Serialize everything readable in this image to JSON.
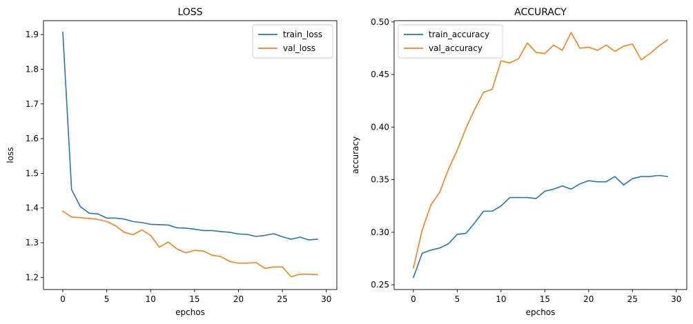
{
  "colors": {
    "series_0": "#1f77b4",
    "series_1": "#ff7f0e",
    "axis": "#000000",
    "legend_border": "#cccccc",
    "background": "#ffffff"
  },
  "chart_data": [
    {
      "type": "line",
      "title": "LOSS",
      "xlabel": "epchos",
      "ylabel": "loss",
      "xlim": [
        -2.2,
        31.2
      ],
      "ylim": [
        1.165,
        1.94
      ],
      "x_ticks": [
        0,
        5,
        10,
        15,
        20,
        25,
        30
      ],
      "y_ticks": [
        1.2,
        1.3,
        1.4,
        1.5,
        1.6,
        1.7,
        1.8,
        1.9
      ],
      "grid": false,
      "legend_position": "upper right",
      "x": [
        0,
        1,
        2,
        3,
        4,
        5,
        6,
        7,
        8,
        9,
        10,
        11,
        12,
        13,
        14,
        15,
        16,
        17,
        18,
        19,
        20,
        21,
        22,
        23,
        24,
        25,
        26,
        27,
        28,
        29
      ],
      "series": [
        {
          "name": "train_loss",
          "values": [
            1.907,
            1.453,
            1.404,
            1.385,
            1.383,
            1.371,
            1.371,
            1.368,
            1.361,
            1.358,
            1.353,
            1.352,
            1.351,
            1.343,
            1.342,
            1.339,
            1.335,
            1.335,
            1.332,
            1.33,
            1.325,
            1.324,
            1.318,
            1.321,
            1.326,
            1.317,
            1.31,
            1.316,
            1.308,
            1.31
          ]
        },
        {
          "name": "val_loss",
          "values": [
            1.391,
            1.374,
            1.372,
            1.37,
            1.367,
            1.361,
            1.349,
            1.33,
            1.323,
            1.337,
            1.321,
            1.287,
            1.302,
            1.282,
            1.271,
            1.278,
            1.276,
            1.264,
            1.26,
            1.246,
            1.241,
            1.241,
            1.243,
            1.226,
            1.23,
            1.23,
            1.202,
            1.209,
            1.209,
            1.208
          ]
        }
      ]
    },
    {
      "type": "line",
      "title": "ACCURACY",
      "xlabel": "epchos",
      "ylabel": "accuracy",
      "xlim": [
        -2.2,
        31.2
      ],
      "ylim": [
        0.2455,
        0.5012
      ],
      "x_ticks": [
        0,
        5,
        10,
        15,
        20,
        25,
        30
      ],
      "y_ticks": [
        0.25,
        0.3,
        0.35,
        0.4,
        0.45,
        0.5
      ],
      "y_tick_labels": [
        "0.25",
        "0.30",
        "0.35",
        "0.40",
        "0.45",
        "0.50"
      ],
      "grid": false,
      "legend_position": "upper left",
      "x": [
        0,
        1,
        2,
        3,
        4,
        5,
        6,
        7,
        8,
        9,
        10,
        11,
        12,
        13,
        14,
        15,
        16,
        17,
        18,
        19,
        20,
        21,
        22,
        23,
        24,
        25,
        26,
        27,
        28,
        29
      ],
      "series": [
        {
          "name": "train_accuracy",
          "values": [
            0.257,
            0.28,
            0.283,
            0.285,
            0.289,
            0.298,
            0.299,
            0.309,
            0.32,
            0.32,
            0.325,
            0.333,
            0.333,
            0.333,
            0.332,
            0.339,
            0.341,
            0.344,
            0.341,
            0.346,
            0.349,
            0.348,
            0.348,
            0.353,
            0.345,
            0.351,
            0.353,
            0.353,
            0.354,
            0.353
          ]
        },
        {
          "name": "val_accuracy",
          "values": [
            0.266,
            0.302,
            0.326,
            0.338,
            0.36,
            0.378,
            0.399,
            0.417,
            0.433,
            0.436,
            0.463,
            0.461,
            0.465,
            0.48,
            0.471,
            0.47,
            0.478,
            0.473,
            0.49,
            0.475,
            0.476,
            0.473,
            0.478,
            0.472,
            0.477,
            0.479,
            0.464,
            0.47,
            0.477,
            0.483
          ]
        }
      ]
    }
  ]
}
